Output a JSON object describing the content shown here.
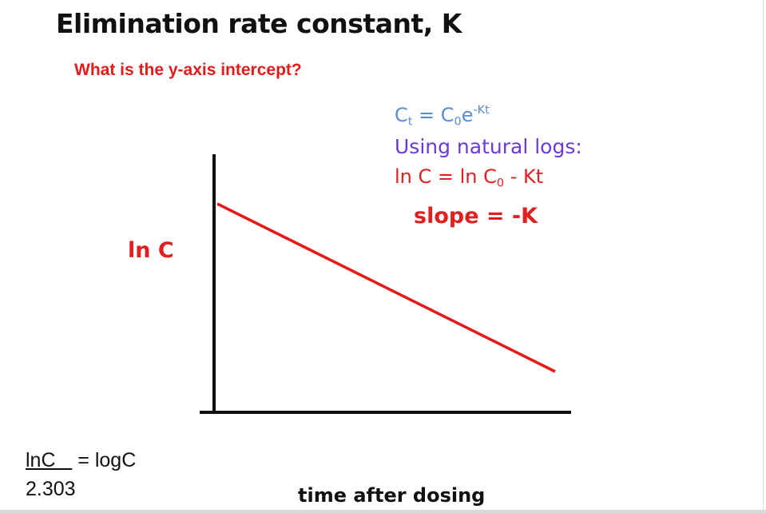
{
  "title": "Elimination rate constant,  K",
  "question": "What is the  y-axis intercept?",
  "equations": {
    "exp_eq": {
      "C": "C",
      "t": "t",
      "eq": " = C",
      "zero": "0",
      "e": "e",
      "exp": "-Kt"
    },
    "natural_logs": "Using natural logs:",
    "ln_eq": {
      "left": "ln C = ln C",
      "zero": "0",
      "right": " - Kt"
    },
    "slope": "slope = -K"
  },
  "conversion": {
    "numerator": "lnC",
    "equals": " = logC",
    "denominator": "2.303"
  },
  "chart_data": {
    "type": "line",
    "title": "",
    "xlabel": "time after dosing",
    "ylabel": "ln C",
    "series": [
      {
        "x": [
          0,
          1
        ],
        "y": [
          1,
          0.16
        ]
      }
    ],
    "xlim": [
      0,
      1
    ],
    "ylim": [
      0,
      1
    ],
    "grid": false
  },
  "colors": {
    "question": "#e31b1b",
    "exp_eq": "#5b8bd0",
    "natural_logs": "#6a3bd8",
    "ln_eq": "#e02020",
    "slope": "#e02020",
    "ylabel": "#e02020",
    "line": "#e81818",
    "axis": "#111111"
  }
}
